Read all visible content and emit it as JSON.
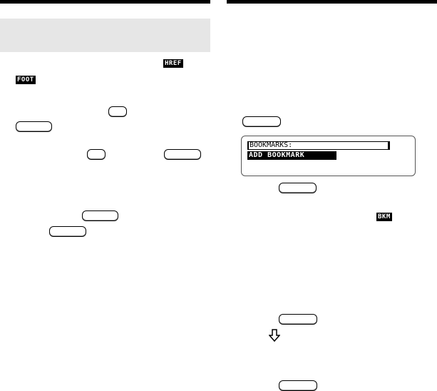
{
  "icons": {
    "href": "HREF",
    "foot": "FOOT",
    "bkm": "BKM"
  },
  "display": {
    "line1": "BOOKMARKS:",
    "line2": "ADD BOOKMARK"
  },
  "colors": {
    "header_bar": "#000000",
    "shaded_box": "#e6e6e6"
  }
}
